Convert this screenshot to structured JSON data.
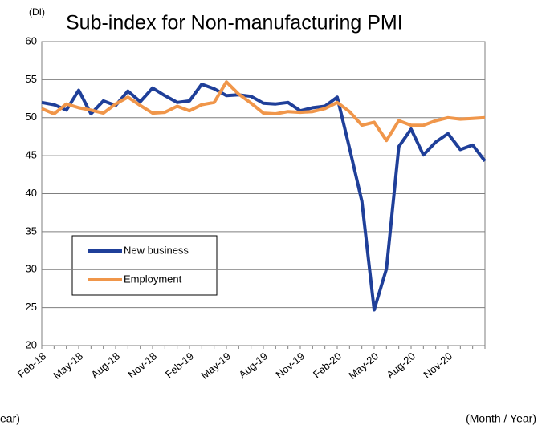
{
  "chart_data": {
    "type": "line",
    "title": "Sub-index for Non-manufacturing PMI",
    "y_unit": "(DI)",
    "x_label": "(Month / Year)",
    "x_label_cut": "ear)",
    "categories": [
      "Feb-18",
      null,
      null,
      "May-18",
      null,
      null,
      "Aug-18",
      null,
      null,
      "Nov-18",
      null,
      null,
      "Feb-19",
      null,
      null,
      "May-19",
      null,
      null,
      "Aug-19",
      null,
      null,
      "Nov-19",
      null,
      null,
      "Feb-20",
      null,
      null,
      "May-20",
      null,
      null,
      "Aug-20",
      null,
      null,
      "Nov-20",
      null,
      null,
      null
    ],
    "series": [
      {
        "name": "New business",
        "color": "#1f3f99",
        "values": [
          52.0,
          51.7,
          51.0,
          53.6,
          50.5,
          52.2,
          51.6,
          53.5,
          52.1,
          53.9,
          52.9,
          52.0,
          52.2,
          54.4,
          53.8,
          52.9,
          53.0,
          52.8,
          51.9,
          51.8,
          52.0,
          50.9,
          51.3,
          51.5,
          52.7,
          46.0,
          39.0,
          24.7,
          30.1,
          46.2,
          48.5,
          45.1,
          46.8,
          47.9,
          45.8,
          46.4,
          44.3
        ]
      },
      {
        "name": "Employment",
        "color": "#f0964a",
        "values": [
          51.2,
          50.5,
          51.8,
          51.3,
          51.0,
          50.6,
          51.8,
          52.7,
          51.6,
          50.6,
          50.7,
          51.5,
          50.9,
          51.7,
          52.0,
          54.7,
          53.1,
          51.9,
          50.6,
          50.5,
          50.8,
          50.7,
          50.8,
          51.2,
          52.0,
          50.8,
          49.0,
          49.4,
          47.0,
          49.6,
          49.0,
          49.0,
          49.6,
          50.0,
          49.8,
          49.9,
          50.0
        ]
      }
    ],
    "ylim": [
      20,
      60
    ],
    "yticks": [
      20,
      25,
      30,
      35,
      40,
      45,
      50,
      55,
      60
    ],
    "grid": true,
    "legend": "lower left"
  }
}
